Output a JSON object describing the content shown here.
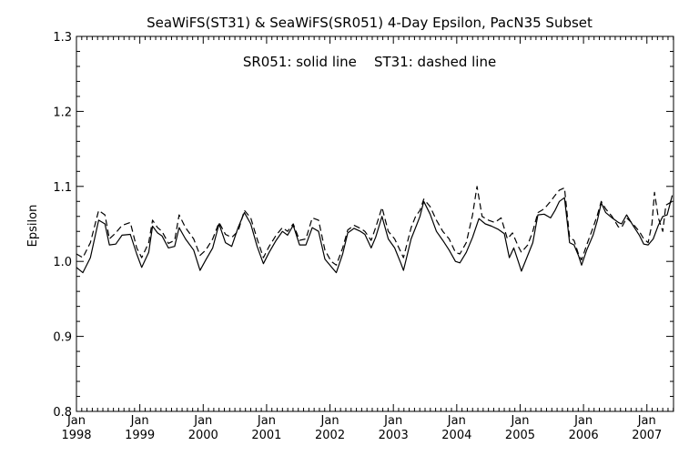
{
  "chart_data": {
    "type": "line",
    "title": "SeaWiFS(ST31) & SeaWiFS(SR051) 4-Day Epsilon, PacN35 Subset",
    "annotation": "SR051: solid line    ST31: dashed line",
    "xlabel": "",
    "ylabel": "Epsilon",
    "xlim": [
      1998.0,
      2007.42
    ],
    "ylim": [
      0.8,
      1.3
    ],
    "yticks": [
      "0.8",
      "0.9",
      "1.0",
      "1.1",
      "1.2",
      "1.3"
    ],
    "xticks": [
      {
        "month": "Jan",
        "year": "1998"
      },
      {
        "month": "Jan",
        "year": "1999"
      },
      {
        "month": "Jan",
        "year": "2000"
      },
      {
        "month": "Jan",
        "year": "2001"
      },
      {
        "month": "Jan",
        "year": "2002"
      },
      {
        "month": "Jan",
        "year": "2003"
      },
      {
        "month": "Jan",
        "year": "2004"
      },
      {
        "month": "Jan",
        "year": "2005"
      },
      {
        "month": "Jan",
        "year": "2006"
      },
      {
        "month": "Jan",
        "year": "2007"
      }
    ],
    "grid": false,
    "legend": "none",
    "series": [
      {
        "style": "solid",
        "points": [
          [
            1998.0,
            0.992
          ],
          [
            1998.1,
            0.985
          ],
          [
            1998.22,
            1.005
          ],
          [
            1998.35,
            1.055
          ],
          [
            1998.45,
            1.05
          ],
          [
            1998.52,
            1.022
          ],
          [
            1998.62,
            1.023
          ],
          [
            1998.72,
            1.035
          ],
          [
            1998.85,
            1.036
          ],
          [
            1998.95,
            1.01
          ],
          [
            1999.03,
            0.992
          ],
          [
            1999.14,
            1.012
          ],
          [
            1999.2,
            1.047
          ],
          [
            1999.28,
            1.038
          ],
          [
            1999.35,
            1.034
          ],
          [
            1999.45,
            1.018
          ],
          [
            1999.55,
            1.02
          ],
          [
            1999.62,
            1.045
          ],
          [
            1999.72,
            1.03
          ],
          [
            1999.85,
            1.015
          ],
          [
            1999.95,
            0.988
          ],
          [
            2000.04,
            1.002
          ],
          [
            2000.15,
            1.018
          ],
          [
            2000.25,
            1.05
          ],
          [
            2000.35,
            1.025
          ],
          [
            2000.45,
            1.02
          ],
          [
            2000.55,
            1.045
          ],
          [
            2000.65,
            1.065
          ],
          [
            2000.75,
            1.05
          ],
          [
            2000.85,
            1.02
          ],
          [
            2000.95,
            0.997
          ],
          [
            2001.04,
            1.012
          ],
          [
            2001.15,
            1.028
          ],
          [
            2001.25,
            1.04
          ],
          [
            2001.33,
            1.035
          ],
          [
            2001.42,
            1.048
          ],
          [
            2001.52,
            1.022
          ],
          [
            2001.62,
            1.022
          ],
          [
            2001.72,
            1.045
          ],
          [
            2001.82,
            1.04
          ],
          [
            2001.92,
            1.003
          ],
          [
            2002.02,
            0.993
          ],
          [
            2002.1,
            0.985
          ],
          [
            2002.2,
            1.01
          ],
          [
            2002.28,
            1.038
          ],
          [
            2002.38,
            1.044
          ],
          [
            2002.48,
            1.04
          ],
          [
            2002.55,
            1.036
          ],
          [
            2002.65,
            1.018
          ],
          [
            2002.72,
            1.032
          ],
          [
            2002.82,
            1.06
          ],
          [
            2002.92,
            1.03
          ],
          [
            2003.02,
            1.018
          ],
          [
            2003.12,
            0.997
          ],
          [
            2003.16,
            0.988
          ],
          [
            2003.28,
            1.03
          ],
          [
            2003.35,
            1.045
          ],
          [
            2003.42,
            1.06
          ],
          [
            2003.48,
            1.08
          ],
          [
            2003.58,
            1.063
          ],
          [
            2003.68,
            1.04
          ],
          [
            2003.78,
            1.028
          ],
          [
            2003.88,
            1.015
          ],
          [
            2003.98,
            1.0
          ],
          [
            2004.05,
            0.998
          ],
          [
            2004.15,
            1.012
          ],
          [
            2004.25,
            1.032
          ],
          [
            2004.35,
            1.057
          ],
          [
            2004.45,
            1.05
          ],
          [
            2004.55,
            1.047
          ],
          [
            2004.65,
            1.043
          ],
          [
            2004.75,
            1.037
          ],
          [
            2004.83,
            1.005
          ],
          [
            2004.9,
            1.018
          ],
          [
            2004.97,
            1.0
          ],
          [
            2005.02,
            0.987
          ],
          [
            2005.12,
            1.008
          ],
          [
            2005.2,
            1.025
          ],
          [
            2005.28,
            1.062
          ],
          [
            2005.38,
            1.063
          ],
          [
            2005.48,
            1.058
          ],
          [
            2005.55,
            1.068
          ],
          [
            2005.62,
            1.08
          ],
          [
            2005.7,
            1.085
          ],
          [
            2005.78,
            1.025
          ],
          [
            2005.85,
            1.022
          ],
          [
            2005.92,
            1.008
          ],
          [
            2005.97,
            0.995
          ],
          [
            2006.05,
            1.015
          ],
          [
            2006.15,
            1.035
          ],
          [
            2006.22,
            1.055
          ],
          [
            2006.28,
            1.078
          ],
          [
            2006.35,
            1.065
          ],
          [
            2006.45,
            1.058
          ],
          [
            2006.55,
            1.052
          ],
          [
            2006.6,
            1.05
          ],
          [
            2006.68,
            1.062
          ],
          [
            2006.78,
            1.048
          ],
          [
            2006.88,
            1.035
          ],
          [
            2006.95,
            1.023
          ],
          [
            2007.02,
            1.022
          ],
          [
            2007.1,
            1.03
          ],
          [
            2007.18,
            1.048
          ],
          [
            2007.25,
            1.06
          ],
          [
            2007.32,
            1.062
          ],
          [
            2007.4,
            1.088
          ]
        ]
      },
      {
        "style": "dashed",
        "points": [
          [
            1998.0,
            1.01
          ],
          [
            1998.1,
            1.005
          ],
          [
            1998.22,
            1.025
          ],
          [
            1998.35,
            1.068
          ],
          [
            1998.45,
            1.062
          ],
          [
            1998.52,
            1.03
          ],
          [
            1998.62,
            1.038
          ],
          [
            1998.72,
            1.048
          ],
          [
            1998.85,
            1.052
          ],
          [
            1998.95,
            1.018
          ],
          [
            1999.03,
            1.005
          ],
          [
            1999.14,
            1.025
          ],
          [
            1999.2,
            1.055
          ],
          [
            1999.28,
            1.045
          ],
          [
            1999.35,
            1.04
          ],
          [
            1999.45,
            1.024
          ],
          [
            1999.55,
            1.028
          ],
          [
            1999.62,
            1.062
          ],
          [
            1999.72,
            1.045
          ],
          [
            1999.85,
            1.03
          ],
          [
            1999.95,
            1.008
          ],
          [
            2000.04,
            1.015
          ],
          [
            2000.15,
            1.03
          ],
          [
            2000.25,
            1.052
          ],
          [
            2000.35,
            1.036
          ],
          [
            2000.45,
            1.032
          ],
          [
            2000.55,
            1.04
          ],
          [
            2000.65,
            1.068
          ],
          [
            2000.75,
            1.058
          ],
          [
            2000.85,
            1.03
          ],
          [
            2000.95,
            1.005
          ],
          [
            2001.04,
            1.02
          ],
          [
            2001.15,
            1.035
          ],
          [
            2001.25,
            1.045
          ],
          [
            2001.33,
            1.04
          ],
          [
            2001.42,
            1.05
          ],
          [
            2001.52,
            1.028
          ],
          [
            2001.62,
            1.03
          ],
          [
            2001.72,
            1.058
          ],
          [
            2001.82,
            1.055
          ],
          [
            2001.92,
            1.015
          ],
          [
            2002.02,
            1.0
          ],
          [
            2002.1,
            0.995
          ],
          [
            2002.2,
            1.018
          ],
          [
            2002.28,
            1.042
          ],
          [
            2002.38,
            1.048
          ],
          [
            2002.48,
            1.044
          ],
          [
            2002.55,
            1.04
          ],
          [
            2002.65,
            1.028
          ],
          [
            2002.72,
            1.045
          ],
          [
            2002.82,
            1.072
          ],
          [
            2002.92,
            1.04
          ],
          [
            2003.02,
            1.03
          ],
          [
            2003.12,
            1.012
          ],
          [
            2003.16,
            1.005
          ],
          [
            2003.28,
            1.045
          ],
          [
            2003.35,
            1.06
          ],
          [
            2003.42,
            1.068
          ],
          [
            2003.48,
            1.083
          ],
          [
            2003.58,
            1.073
          ],
          [
            2003.68,
            1.055
          ],
          [
            2003.78,
            1.04
          ],
          [
            2003.88,
            1.03
          ],
          [
            2003.98,
            1.012
          ],
          [
            2004.05,
            1.01
          ],
          [
            2004.15,
            1.025
          ],
          [
            2004.25,
            1.062
          ],
          [
            2004.32,
            1.1
          ],
          [
            2004.4,
            1.06
          ],
          [
            2004.5,
            1.055
          ],
          [
            2004.6,
            1.052
          ],
          [
            2004.7,
            1.058
          ],
          [
            2004.8,
            1.03
          ],
          [
            2004.88,
            1.038
          ],
          [
            2004.97,
            1.02
          ],
          [
            2005.02,
            1.012
          ],
          [
            2005.12,
            1.022
          ],
          [
            2005.2,
            1.04
          ],
          [
            2005.28,
            1.065
          ],
          [
            2005.38,
            1.07
          ],
          [
            2005.48,
            1.08
          ],
          [
            2005.55,
            1.088
          ],
          [
            2005.62,
            1.095
          ],
          [
            2005.7,
            1.098
          ],
          [
            2005.78,
            1.032
          ],
          [
            2005.85,
            1.028
          ],
          [
            2005.92,
            1.01
          ],
          [
            2005.97,
            1.002
          ],
          [
            2006.05,
            1.022
          ],
          [
            2006.15,
            1.045
          ],
          [
            2006.22,
            1.062
          ],
          [
            2006.28,
            1.08
          ],
          [
            2006.35,
            1.07
          ],
          [
            2006.45,
            1.06
          ],
          [
            2006.55,
            1.046
          ],
          [
            2006.6,
            1.045
          ],
          [
            2006.68,
            1.058
          ],
          [
            2006.78,
            1.05
          ],
          [
            2006.88,
            1.04
          ],
          [
            2006.95,
            1.03
          ],
          [
            2007.02,
            1.025
          ],
          [
            2007.08,
            1.05
          ],
          [
            2007.12,
            1.092
          ],
          [
            2007.18,
            1.058
          ],
          [
            2007.25,
            1.04
          ],
          [
            2007.3,
            1.075
          ],
          [
            2007.4,
            1.08
          ]
        ]
      }
    ]
  }
}
